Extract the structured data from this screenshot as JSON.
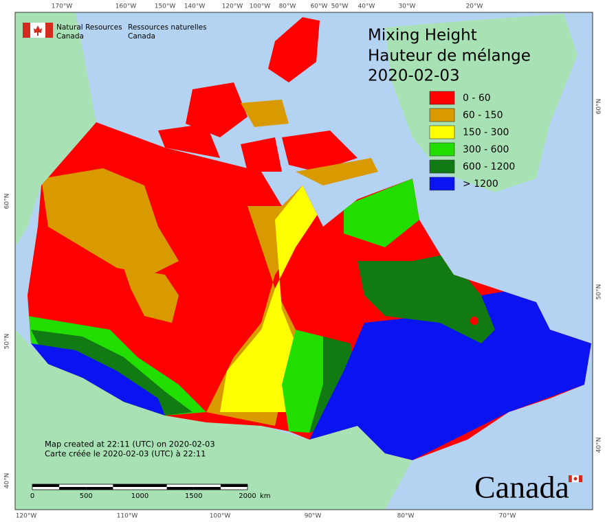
{
  "header": {
    "org_en": [
      "Natural Resources",
      "Canada"
    ],
    "org_fr": [
      "Ressources naturelles",
      "Canada"
    ]
  },
  "title": [
    "Mixing Height",
    "Hauteur de mélange",
    "2020-02-03"
  ],
  "legend": [
    {
      "label": "0 - 60",
      "color": "#ff0000"
    },
    {
      "label": "60 - 150",
      "color": "#d99a00"
    },
    {
      "label": "150 - 300",
      "color": "#ffff00"
    },
    {
      "label": "300 - 600",
      "color": "#22dd00"
    },
    {
      "label": "600 - 1200",
      "color": "#127a12"
    },
    {
      "label": "> 1200",
      "color": "#0a14f0"
    }
  ],
  "top_labels": [
    "170°W",
    "160°W",
    "150°W",
    "140°W",
    "120°W",
    "100°W",
    "80°W",
    "60°W",
    "50°W",
    "40°W",
    "30°W",
    "20°W"
  ],
  "bottom_labels": [
    "120°W",
    "110°W",
    "100°W",
    "90°W",
    "80°W",
    "70°W"
  ],
  "left_labels": [
    "60°N",
    "50°N",
    "40°N"
  ],
  "right_labels": [
    "60°N",
    "50°N",
    "40°N"
  ],
  "footnote": [
    "Map created at 22:11 (UTC) on 2020-02-03",
    "Carte créée le 2020-02-03 (UTC) à 22:11"
  ],
  "scale_bar": {
    "ticks": [
      0,
      500,
      1000,
      1500,
      2000
    ],
    "unit": "km"
  },
  "wordmark": "Canada"
}
